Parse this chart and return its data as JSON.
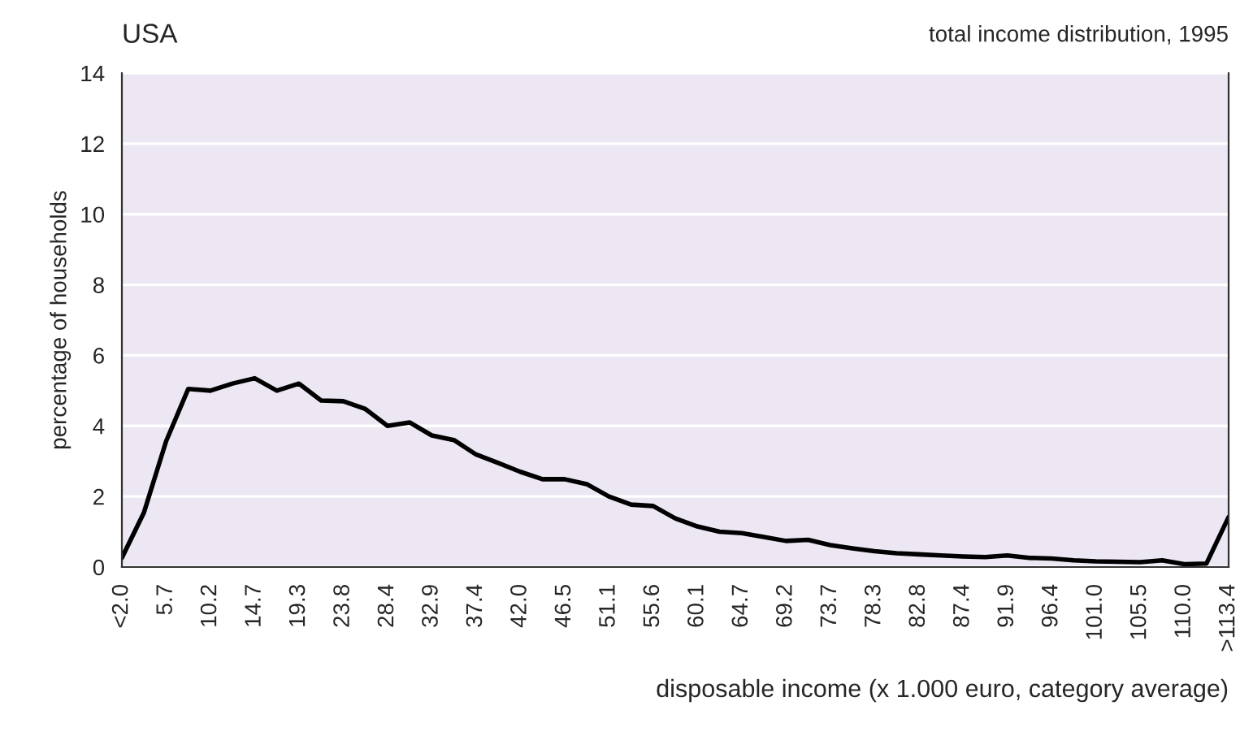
{
  "chart_data": {
    "type": "line",
    "title": "USA",
    "subtitle": "total income distribution, 1995",
    "xlabel": "disposable income (x 1.000 euro, category average)",
    "ylabel": "percentage of households",
    "categories": [
      "<2.0",
      null,
      "5.7",
      null,
      "10.2",
      null,
      "14.7",
      null,
      "19.3",
      null,
      "23.8",
      null,
      "28.4",
      null,
      "32.9",
      null,
      "37.4",
      null,
      "42.0",
      null,
      "46.5",
      null,
      "51.1",
      null,
      "55.6",
      null,
      "60.1",
      null,
      "64.7",
      null,
      "69.2",
      null,
      "73.7",
      null,
      "78.3",
      null,
      "82.8",
      null,
      "87.4",
      null,
      "91.9",
      null,
      "96.4",
      null,
      "101.0",
      null,
      "105.5",
      null,
      "110.0",
      null,
      ">113.4"
    ],
    "series": [
      {
        "color": "#000000",
        "values": [
          0.26,
          1.55,
          3.57,
          5.05,
          5.0,
          5.2,
          5.35,
          5.0,
          5.2,
          4.72,
          4.7,
          4.48,
          4.0,
          4.1,
          3.73,
          3.6,
          3.19,
          2.95,
          2.7,
          2.49,
          2.49,
          2.35,
          2.0,
          1.77,
          1.73,
          1.38,
          1.15,
          1.0,
          0.96,
          0.85,
          0.74,
          0.77,
          0.62,
          0.53,
          0.45,
          0.39,
          0.36,
          0.33,
          0.3,
          0.28,
          0.33,
          0.26,
          0.24,
          0.19,
          0.16,
          0.15,
          0.14,
          0.19,
          0.08,
          0.1,
          1.42
        ]
      }
    ],
    "ylim": [
      0,
      14
    ],
    "yticks": [
      0,
      2,
      4,
      6,
      8,
      10,
      12,
      14
    ],
    "grid": "y",
    "line_style": "solid",
    "marker": "none"
  }
}
